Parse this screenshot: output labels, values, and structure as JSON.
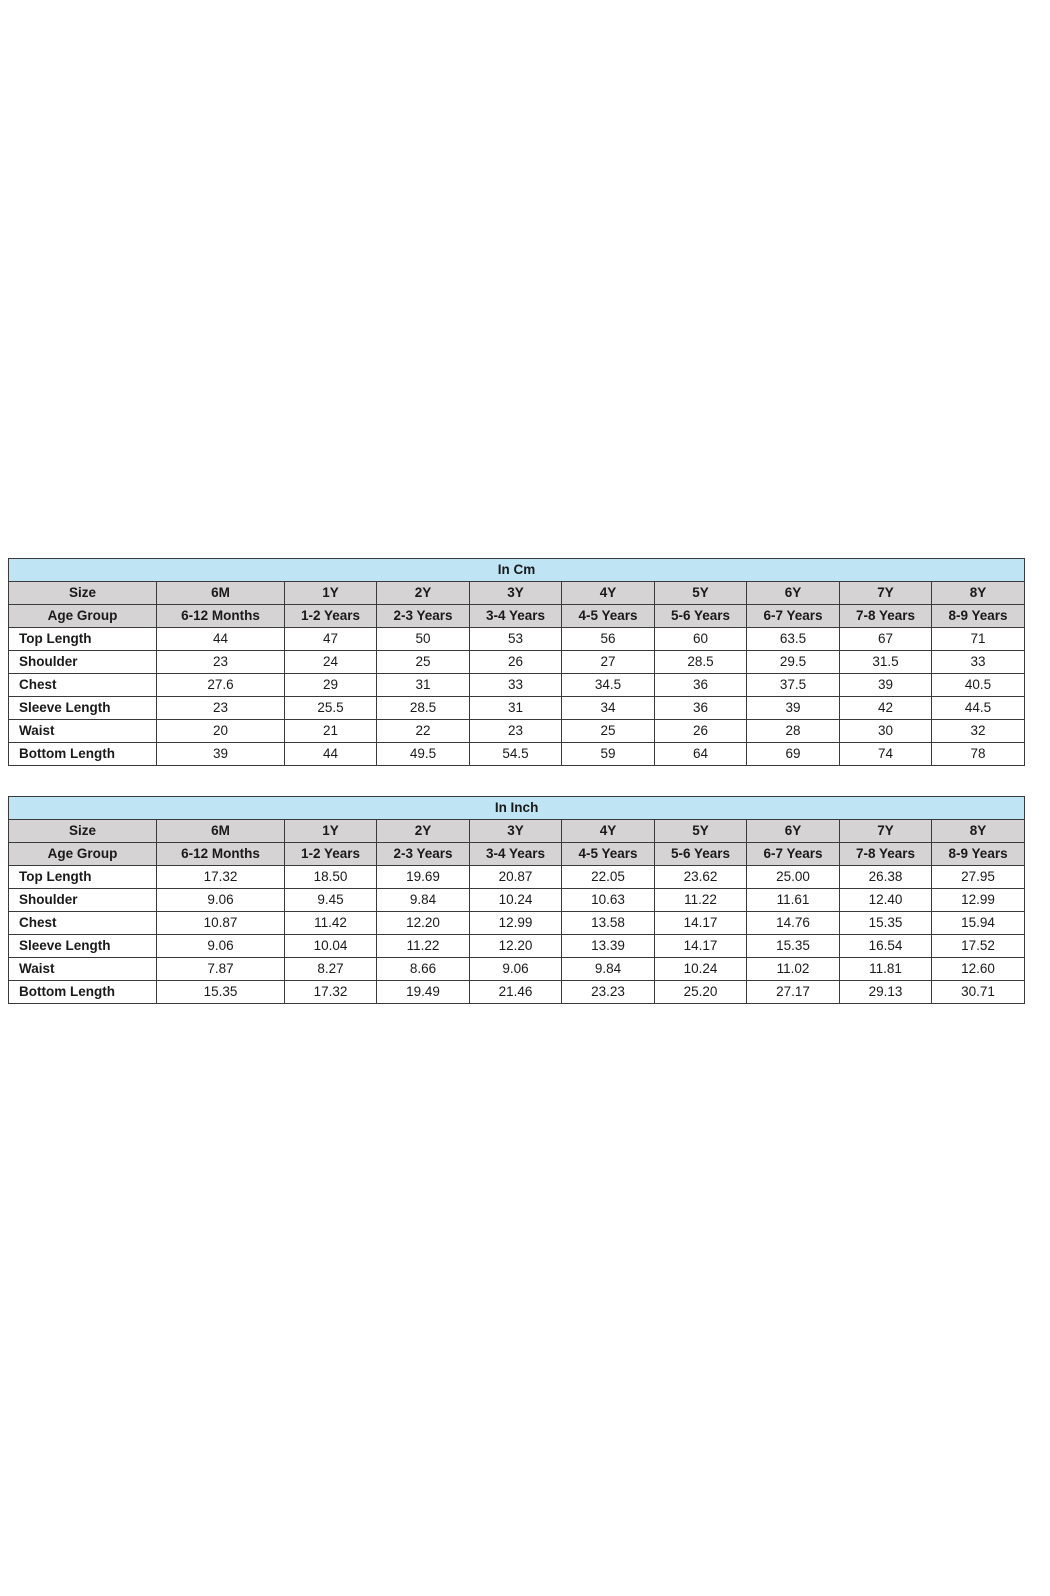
{
  "colors": {
    "title_bg": "#bfe4f4",
    "header_bg": "#d5d3d3",
    "border": "#3a3a3a"
  },
  "tables": [
    {
      "title": "In Cm",
      "size_label": "Size",
      "sizes": [
        "6M",
        "1Y",
        "2Y",
        "3Y",
        "4Y",
        "5Y",
        "6Y",
        "7Y",
        "8Y"
      ],
      "age_label": "Age Group",
      "ages": [
        "6-12 Months",
        "1-2 Years",
        "2-3 Years",
        "3-4 Years",
        "4-5 Years",
        "5-6 Years",
        "6-7 Years",
        "7-8 Years",
        "8-9 Years"
      ],
      "rows": [
        {
          "label": "Top Length",
          "values": [
            "44",
            "47",
            "50",
            "53",
            "56",
            "60",
            "63.5",
            "67",
            "71"
          ]
        },
        {
          "label": "Shoulder",
          "values": [
            "23",
            "24",
            "25",
            "26",
            "27",
            "28.5",
            "29.5",
            "31.5",
            "33"
          ]
        },
        {
          "label": "Chest",
          "values": [
            "27.6",
            "29",
            "31",
            "33",
            "34.5",
            "36",
            "37.5",
            "39",
            "40.5"
          ]
        },
        {
          "label": "Sleeve Length",
          "values": [
            "23",
            "25.5",
            "28.5",
            "31",
            "34",
            "36",
            "39",
            "42",
            "44.5"
          ]
        },
        {
          "label": "Waist",
          "values": [
            "20",
            "21",
            "22",
            "23",
            "25",
            "26",
            "28",
            "30",
            "32"
          ]
        },
        {
          "label": "Bottom Length",
          "values": [
            "39",
            "44",
            "49.5",
            "54.5",
            "59",
            "64",
            "69",
            "74",
            "78"
          ]
        }
      ]
    },
    {
      "title": "In Inch",
      "size_label": "Size",
      "sizes": [
        "6M",
        "1Y",
        "2Y",
        "3Y",
        "4Y",
        "5Y",
        "6Y",
        "7Y",
        "8Y"
      ],
      "age_label": "Age Group",
      "ages": [
        "6-12 Months",
        "1-2 Years",
        "2-3 Years",
        "3-4 Years",
        "4-5 Years",
        "5-6 Years",
        "6-7 Years",
        "7-8 Years",
        "8-9 Years"
      ],
      "rows": [
        {
          "label": "Top Length",
          "values": [
            "17.32",
            "18.50",
            "19.69",
            "20.87",
            "22.05",
            "23.62",
            "25.00",
            "26.38",
            "27.95"
          ]
        },
        {
          "label": "Shoulder",
          "values": [
            "9.06",
            "9.45",
            "9.84",
            "10.24",
            "10.63",
            "11.22",
            "11.61",
            "12.40",
            "12.99"
          ]
        },
        {
          "label": "Chest",
          "values": [
            "10.87",
            "11.42",
            "12.20",
            "12.99",
            "13.58",
            "14.17",
            "14.76",
            "15.35",
            "15.94"
          ]
        },
        {
          "label": "Sleeve Length",
          "values": [
            "9.06",
            "10.04",
            "11.22",
            "12.20",
            "13.39",
            "14.17",
            "15.35",
            "16.54",
            "17.52"
          ]
        },
        {
          "label": "Waist",
          "values": [
            "7.87",
            "8.27",
            "8.66",
            "9.06",
            "9.84",
            "10.24",
            "11.02",
            "11.81",
            "12.60"
          ]
        },
        {
          "label": "Bottom Length",
          "values": [
            "15.35",
            "17.32",
            "19.49",
            "21.46",
            "23.23",
            "25.20",
            "27.17",
            "29.13",
            "30.71"
          ]
        }
      ]
    }
  ]
}
